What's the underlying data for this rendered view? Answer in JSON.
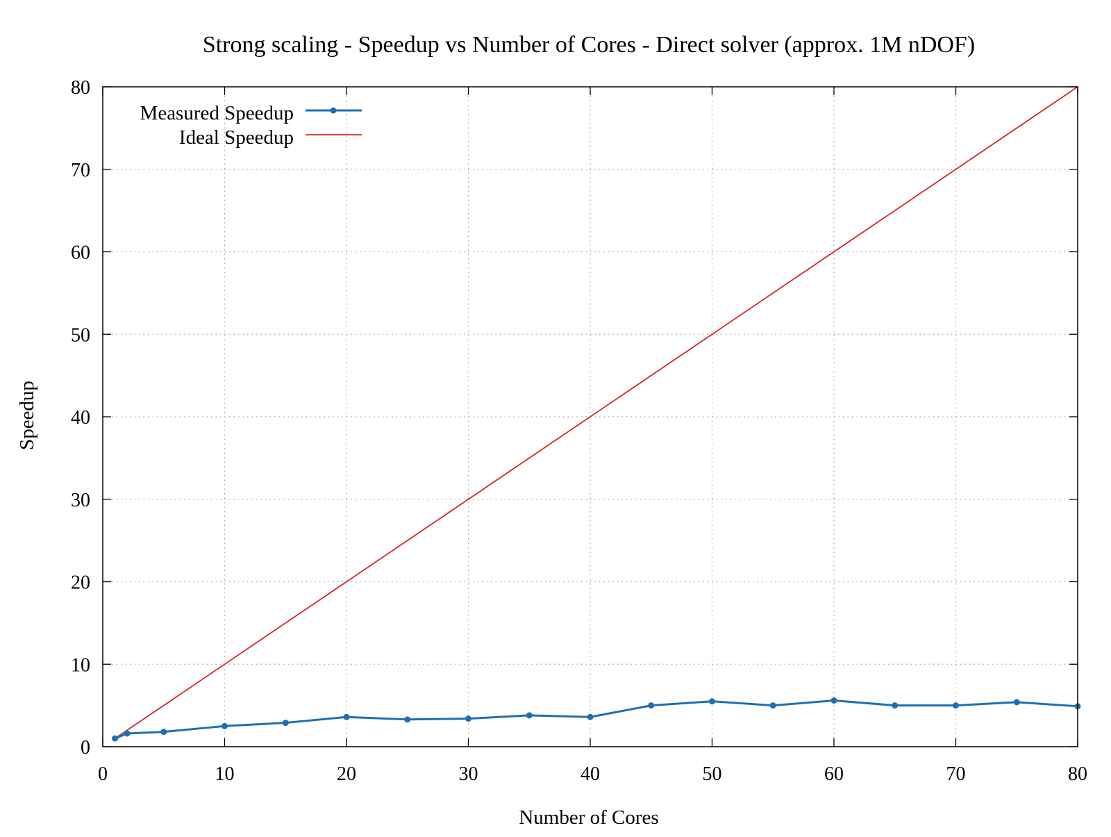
{
  "chart_data": {
    "type": "line",
    "title": "Strong scaling -  Speedup vs Number of Cores - Direct solver (approx. 1M nDOF)",
    "xlabel": "Number of Cores",
    "ylabel": "Speedup",
    "xlim": [
      0,
      80
    ],
    "ylim": [
      0,
      80
    ],
    "xticks": [
      0,
      10,
      20,
      30,
      40,
      50,
      60,
      70,
      80
    ],
    "yticks": [
      0,
      10,
      20,
      30,
      40,
      50,
      60,
      70,
      80
    ],
    "grid": true,
    "legend_position": "top-left",
    "series": [
      {
        "name": "Measured Speedup",
        "color": "#1f6fb0",
        "marker": "circle",
        "x": [
          1,
          2,
          5,
          10,
          15,
          20,
          25,
          30,
          35,
          40,
          45,
          50,
          55,
          60,
          65,
          70,
          75,
          80
        ],
        "y": [
          1.0,
          1.6,
          1.8,
          2.5,
          2.9,
          3.6,
          3.3,
          3.4,
          3.8,
          3.6,
          5.0,
          5.5,
          5.0,
          5.6,
          5.0,
          5.0,
          5.4,
          4.9
        ]
      },
      {
        "name": "Ideal Speedup",
        "color": "#d62728",
        "marker": "none",
        "x": [
          1,
          80
        ],
        "y": [
          1,
          80
        ]
      }
    ]
  }
}
